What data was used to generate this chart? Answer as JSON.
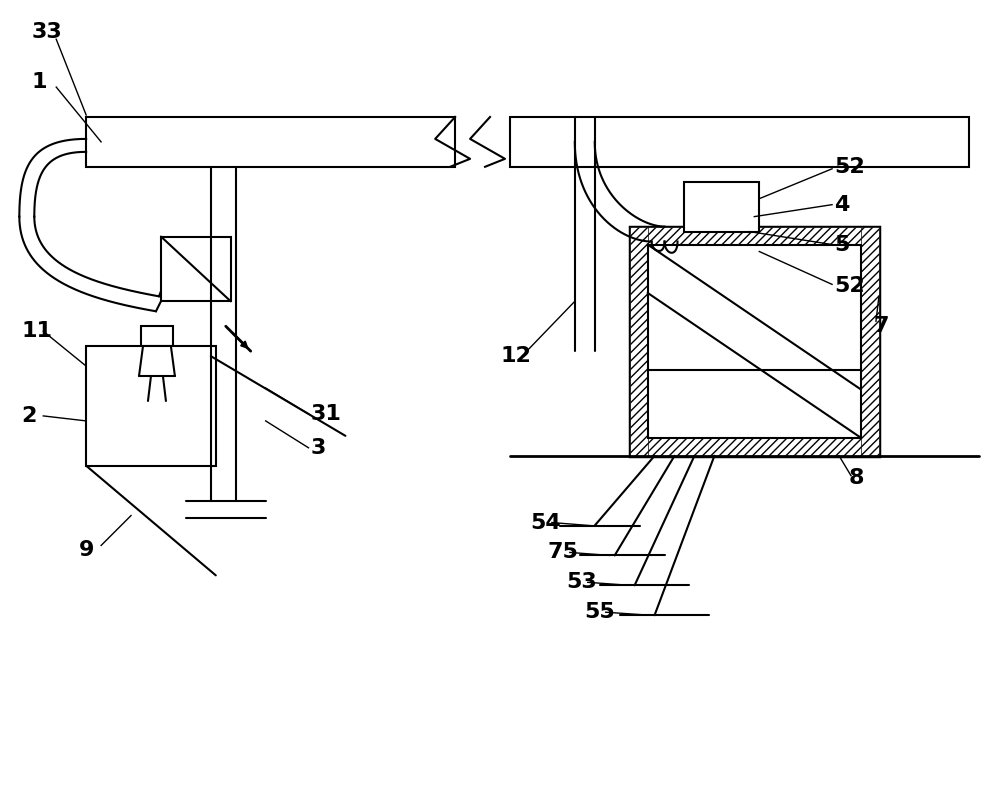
{
  "bg_color": "#ffffff",
  "line_color": "#000000",
  "fontsize": 16,
  "lw": 1.5
}
